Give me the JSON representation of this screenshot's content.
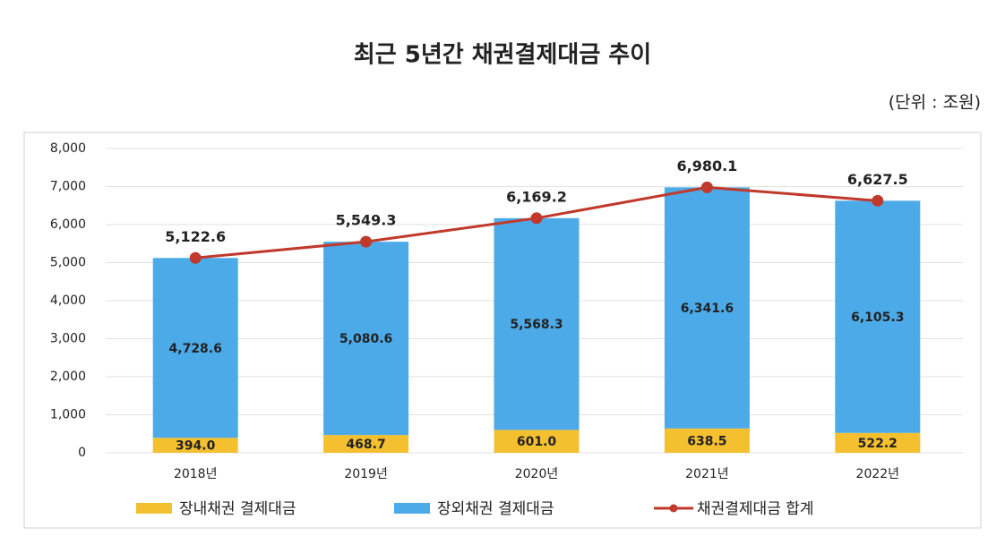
{
  "chart_data": {
    "type": "bar",
    "stacked": true,
    "title": "최근 5년간 채권결제대금 추이",
    "subtitle": "(단위 : 조원)",
    "categories": [
      "2018년",
      "2019년",
      "2020년",
      "2021년",
      "2022년"
    ],
    "series": [
      {
        "name": "장내채권 결제대금",
        "type": "bar",
        "color": "#f4c030",
        "values": [
          394.0,
          468.7,
          601.0,
          638.5,
          522.2
        ],
        "value_labels": [
          "394.0",
          "468.7",
          "601.0",
          "638.5",
          "522.2"
        ]
      },
      {
        "name": "장외채권 결제대금",
        "type": "bar",
        "color": "#4daae8",
        "values": [
          4728.6,
          5080.6,
          5568.3,
          6341.6,
          6105.3
        ],
        "value_labels": [
          "4,728.6",
          "5,080.6",
          "5,568.3",
          "6,341.6",
          "6,105.3"
        ]
      },
      {
        "name": "채권결제대금 합계",
        "type": "line",
        "color": "#c0392b",
        "values": [
          5122.6,
          5549.3,
          6169.2,
          6980.1,
          6627.5
        ],
        "value_labels": [
          "5,122.6",
          "5,549.3",
          "6,169.2",
          "6,980.1",
          "6,627.5"
        ]
      }
    ],
    "ylim": [
      0,
      8000
    ],
    "yticks": [
      0,
      {
        "value": 1000,
        "label": "1,000"
      },
      {
        "value": 2000,
        "label": "2,000"
      },
      {
        "value": 3000,
        "label": "3,000"
      },
      {
        "value": 4000,
        "label": "4,000"
      },
      {
        "value": 5000,
        "label": "5,000"
      },
      {
        "value": 6000,
        "label": "6,000"
      },
      {
        "value": 7000,
        "label": "7,000"
      },
      {
        "value": 8000,
        "label": "8,000"
      }
    ],
    "grid": true
  }
}
